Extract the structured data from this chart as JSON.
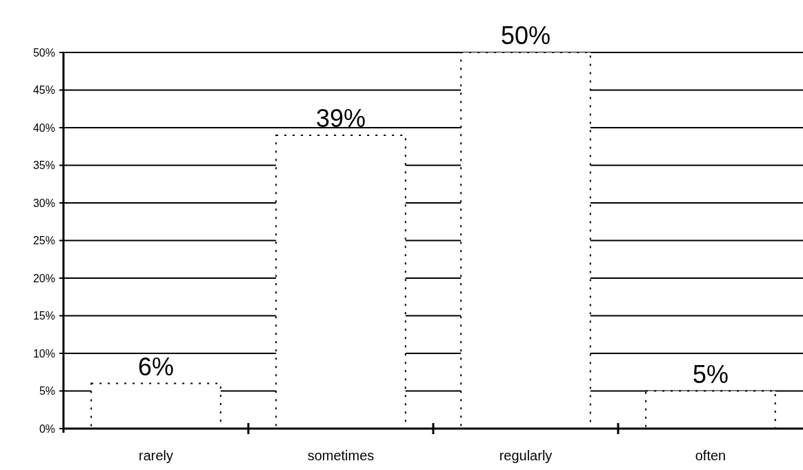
{
  "chart_data": {
    "type": "bar",
    "categories": [
      "rarely",
      "sometimes",
      "regularly",
      "often"
    ],
    "values": [
      6,
      39,
      50,
      5
    ],
    "color": "#ffffff",
    "ylim": [
      0,
      50
    ],
    "yticks": [
      {
        "value": 0,
        "label": "0%"
      },
      {
        "value": 5,
        "label": "5%"
      },
      {
        "value": 10,
        "label": "10%"
      },
      {
        "value": 15,
        "label": "15%"
      },
      {
        "value": 20,
        "label": "20%"
      },
      {
        "value": 25,
        "label": "25%"
      },
      {
        "value": 30,
        "label": "30%"
      },
      {
        "value": 35,
        "label": "35%"
      },
      {
        "value": 40,
        "label": "40%"
      },
      {
        "value": 45,
        "label": "45%"
      },
      {
        "value": 50,
        "label": "50%"
      }
    ],
    "grid": "y",
    "value_labels": [
      "6%",
      "39%",
      "50%",
      "5%"
    ]
  }
}
